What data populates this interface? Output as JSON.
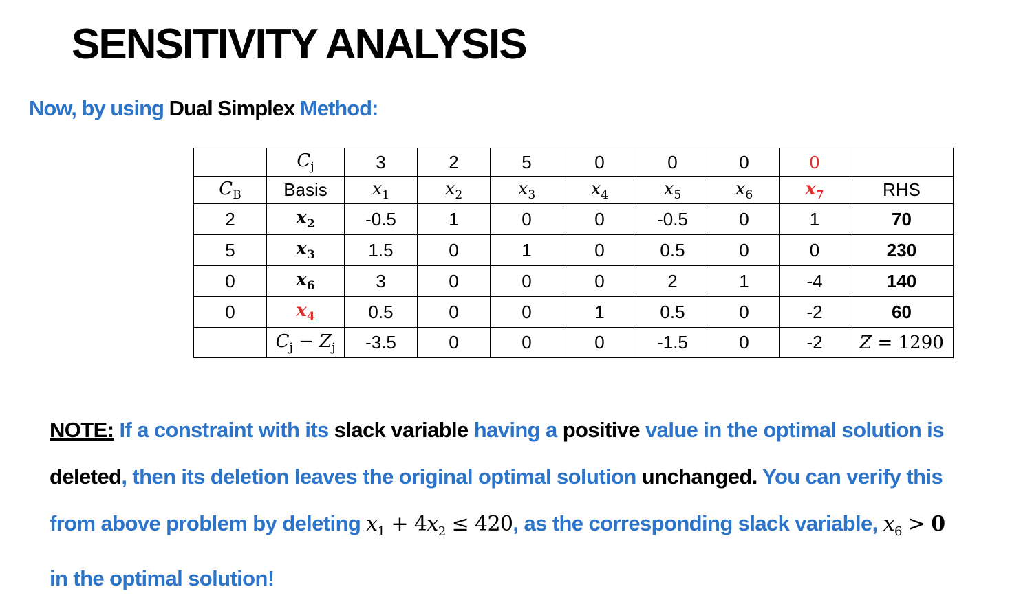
{
  "title": "SENSITIVITY ANALYSIS",
  "subtitle": {
    "part1": "Now, by using ",
    "part2": "Dual Simplex",
    "part3": " Method:"
  },
  "table": {
    "header_cj": "C",
    "header_cj_sub": "j",
    "header_cb": "C",
    "header_cb_sub": "B",
    "header_basis": "Basis",
    "header_rhs": "RHS",
    "cj_values": [
      "3",
      "2",
      "5",
      "0",
      "0",
      "0",
      "0"
    ],
    "variables": [
      {
        "name": "x",
        "sub": "1"
      },
      {
        "name": "x",
        "sub": "2"
      },
      {
        "name": "x",
        "sub": "3"
      },
      {
        "name": "x",
        "sub": "4"
      },
      {
        "name": "x",
        "sub": "5"
      },
      {
        "name": "x",
        "sub": "6"
      },
      {
        "name": "x",
        "sub": "7"
      }
    ],
    "rows": [
      {
        "cb": "2",
        "basis": "x",
        "basis_sub": "2",
        "values": [
          "-0.5",
          "1",
          "0",
          "0",
          "-0.5",
          "0",
          "1"
        ],
        "rhs": "70"
      },
      {
        "cb": "5",
        "basis": "x",
        "basis_sub": "3",
        "values": [
          "1.5",
          "0",
          "1",
          "0",
          "0.5",
          "0",
          "0"
        ],
        "rhs": "230"
      },
      {
        "cb": "0",
        "basis": "x",
        "basis_sub": "6",
        "values": [
          "3",
          "0",
          "0",
          "0",
          "2",
          "1",
          "-4"
        ],
        "rhs": "140"
      },
      {
        "cb": "0",
        "basis": "x",
        "basis_sub": "4",
        "values": [
          "0.5",
          "0",
          "0",
          "1",
          "0.5",
          "0",
          "-2"
        ],
        "rhs": "60"
      }
    ],
    "cz_label": "C − Z",
    "cz_label_c": "C",
    "cz_label_sub1": "j",
    "cz_label_minus": " − Z",
    "cz_label_sub2": "j",
    "cz_values": [
      "-3.5",
      "0",
      "0",
      "0",
      "-1.5",
      "0",
      "-2"
    ],
    "z_var": "Z",
    "z_value": " = 1290"
  },
  "note": {
    "label": "NOTE:",
    "t1": " If a constraint with its ",
    "t2": "slack variable",
    "t3": " having a ",
    "t4": "positive",
    "t5": " value in the optimal solution is ",
    "t6": "deleted",
    "t7": ", then its deletion leaves the original optimal solution ",
    "t8": "unchanged.",
    "t9": " You can verify this from above problem by deleting ",
    "constraint": {
      "x1": "x",
      "x1_sub": "1",
      "middle": " + 4",
      "x2": "x",
      "x2_sub": "2",
      "rhs": " ≤ 420"
    },
    "t10": ", as the corresponding slack variable, ",
    "slack": {
      "var": "x",
      "sub": "6",
      "cmp": " > ",
      "zero": "0"
    },
    "t11": " in the optimal solution!"
  },
  "colors": {
    "blue": "#2b74c9",
    "red": "#e0302a",
    "black": "#000000"
  }
}
